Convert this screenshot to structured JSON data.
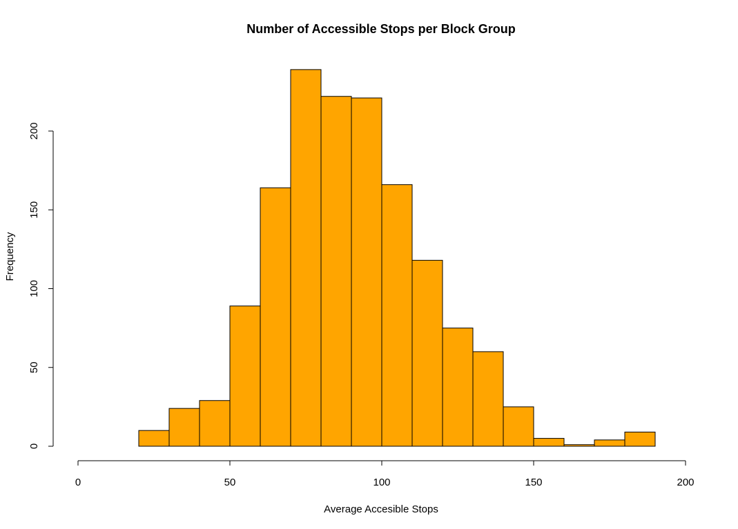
{
  "chart_data": {
    "type": "bar",
    "title": "Number of Accessible Stops per Block Group",
    "xlabel": "Average Accesible Stops",
    "ylabel": "Frequency",
    "bar_color": "#FFA500",
    "edge_color": "#000000",
    "xlim": [
      0,
      200
    ],
    "ylim": [
      0,
      240
    ],
    "x_ticks": [
      0,
      50,
      100,
      150,
      200
    ],
    "y_ticks": [
      0,
      50,
      100,
      150,
      200
    ],
    "bins": [
      {
        "x0": 20,
        "x1": 30,
        "value": 10
      },
      {
        "x0": 30,
        "x1": 40,
        "value": 24
      },
      {
        "x0": 40,
        "x1": 50,
        "value": 29
      },
      {
        "x0": 50,
        "x1": 60,
        "value": 89
      },
      {
        "x0": 60,
        "x1": 70,
        "value": 164
      },
      {
        "x0": 70,
        "x1": 80,
        "value": 239
      },
      {
        "x0": 80,
        "x1": 90,
        "value": 222
      },
      {
        "x0": 90,
        "x1": 100,
        "value": 221
      },
      {
        "x0": 100,
        "x1": 110,
        "value": 166
      },
      {
        "x0": 110,
        "x1": 120,
        "value": 118
      },
      {
        "x0": 120,
        "x1": 130,
        "value": 75
      },
      {
        "x0": 130,
        "x1": 140,
        "value": 60
      },
      {
        "x0": 140,
        "x1": 150,
        "value": 25
      },
      {
        "x0": 150,
        "x1": 160,
        "value": 5
      },
      {
        "x0": 160,
        "x1": 170,
        "value": 1
      },
      {
        "x0": 170,
        "x1": 180,
        "value": 4
      },
      {
        "x0": 180,
        "x1": 190,
        "value": 9
      }
    ]
  }
}
